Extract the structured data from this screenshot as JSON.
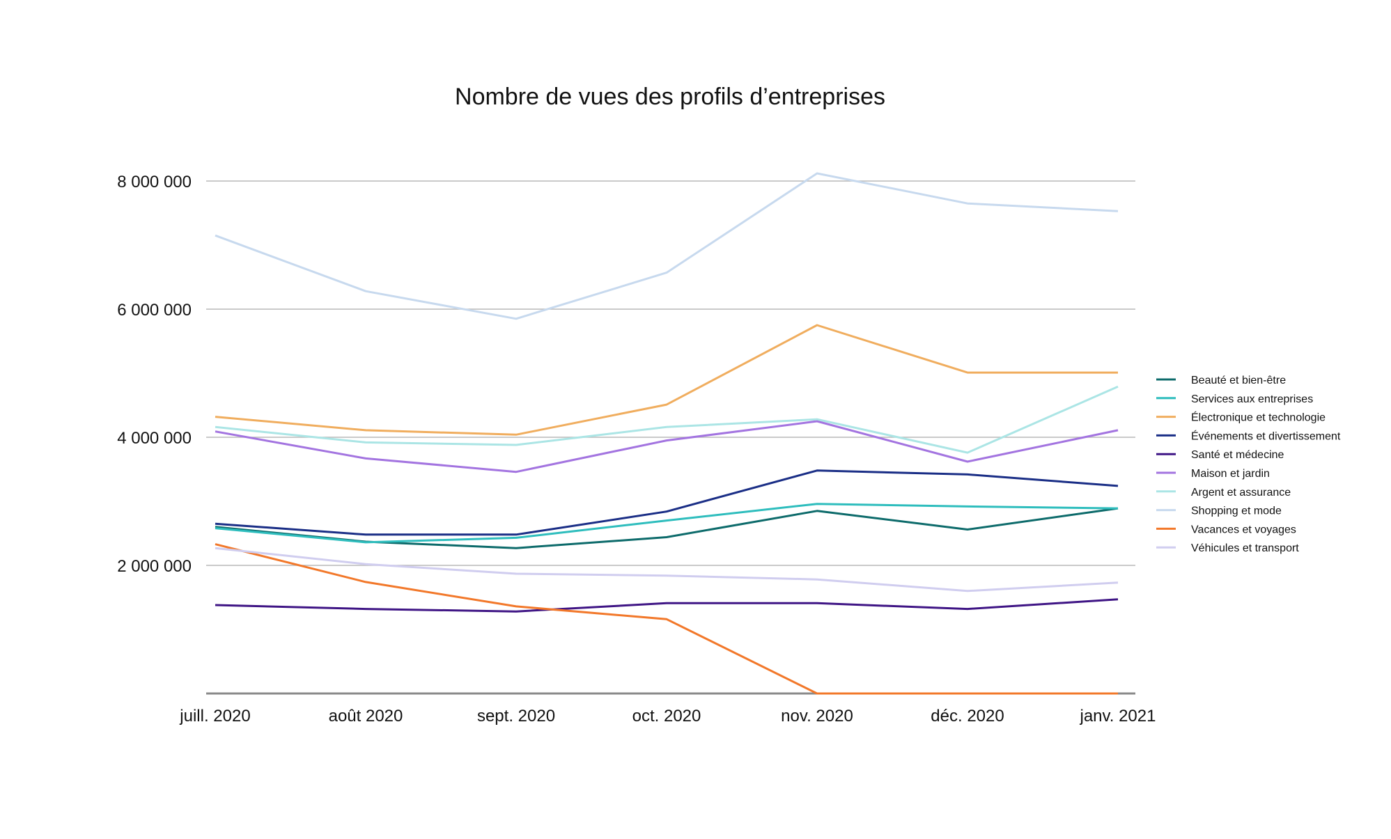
{
  "chart_data": {
    "type": "line",
    "title": "Nombre de vues des profils d’entreprises",
    "xlabel": "",
    "ylabel": "",
    "categories": [
      "juill. 2020",
      "août 2020",
      "sept. 2020",
      "oct. 2020",
      "nov. 2020",
      "déc. 2020",
      "janv. 2021"
    ],
    "ylim": [
      0,
      8000000
    ],
    "yticks": [
      2000000,
      4000000,
      6000000,
      8000000
    ],
    "ytick_labels": [
      "2 000 000",
      "4 000 000",
      "6 000 000",
      "8 000 000"
    ],
    "grid": true,
    "legend_position": "right",
    "series": [
      {
        "name": "Beauté et bien-être",
        "color": "#0d6b6b",
        "values": [
          2600000,
          2370000,
          2270000,
          2440000,
          2850000,
          2560000,
          2890000
        ]
      },
      {
        "name": "Services aux entreprises",
        "color": "#2ebdbd",
        "values": [
          2580000,
          2360000,
          2430000,
          2700000,
          2960000,
          2920000,
          2890000
        ]
      },
      {
        "name": "Électronique et technologie",
        "color": "#f0ad5e",
        "values": [
          4320000,
          4110000,
          4040000,
          4510000,
          5750000,
          5010000,
          5010000
        ]
      },
      {
        "name": "Événements et divertissement",
        "color": "#1a2e86",
        "values": [
          2650000,
          2480000,
          2480000,
          2840000,
          3480000,
          3420000,
          3240000
        ]
      },
      {
        "name": "Santé et médecine",
        "color": "#3f1585",
        "values": [
          1380000,
          1320000,
          1280000,
          1410000,
          1410000,
          1320000,
          1470000
        ]
      },
      {
        "name": "Maison et jardin",
        "color": "#a374e0",
        "values": [
          4090000,
          3670000,
          3460000,
          3950000,
          4250000,
          3620000,
          4110000
        ]
      },
      {
        "name": "Argent et assurance",
        "color": "#abe5e5",
        "values": [
          4160000,
          3920000,
          3880000,
          4160000,
          4280000,
          3760000,
          4790000
        ]
      },
      {
        "name": "Shopping et mode",
        "color": "#c7d9ee",
        "values": [
          7150000,
          6280000,
          5850000,
          6570000,
          8120000,
          7650000,
          7530000
        ]
      },
      {
        "name": "Vacances et voyages",
        "color": "#f2782a",
        "values": [
          2330000,
          1740000,
          1360000,
          1160000,
          0,
          0,
          0
        ]
      },
      {
        "name": "Véhicules et transport",
        "color": "#d0cdef",
        "values": [
          2270000,
          2020000,
          1870000,
          1840000,
          1780000,
          1600000,
          1730000
        ]
      }
    ]
  }
}
